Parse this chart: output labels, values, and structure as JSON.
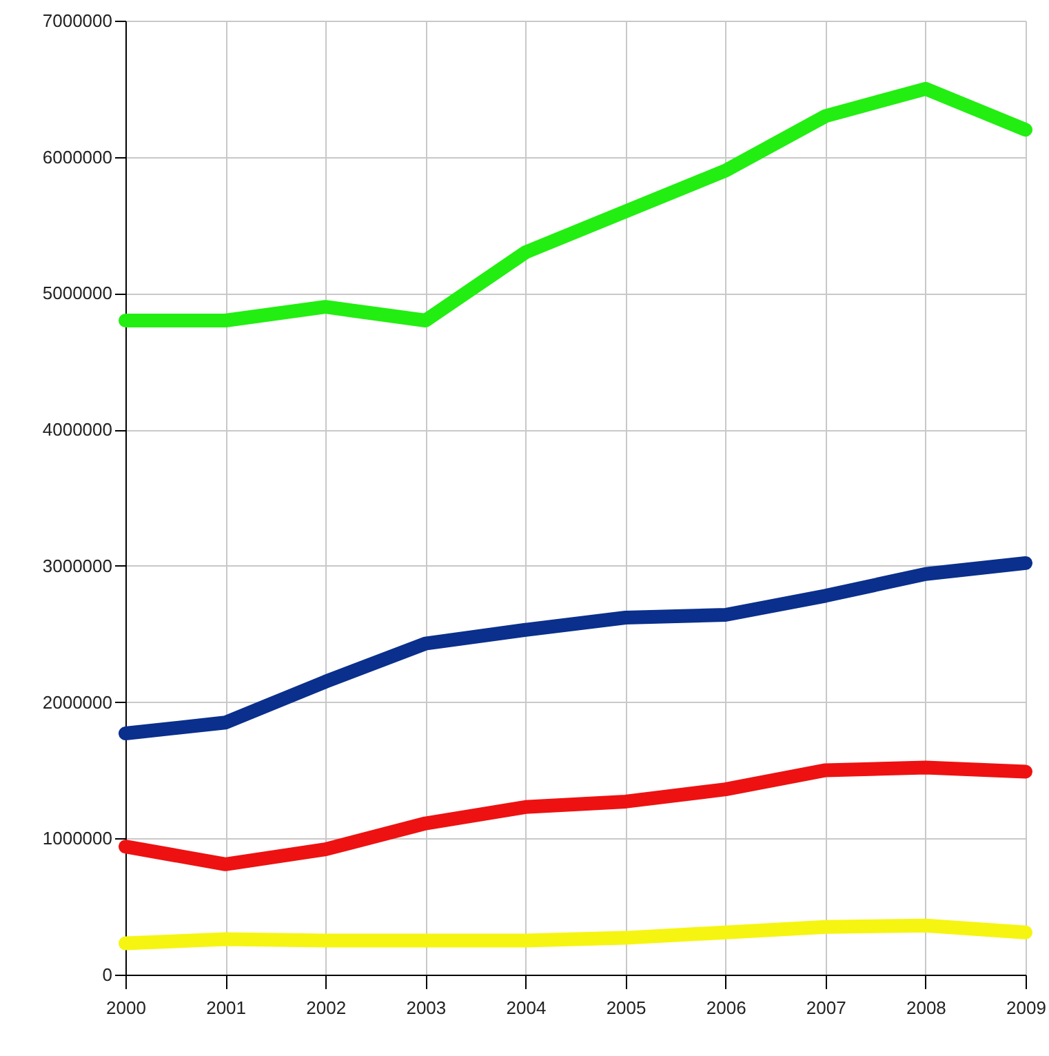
{
  "chart_data": {
    "type": "line",
    "x": [
      2000,
      2001,
      2002,
      2003,
      2004,
      2005,
      2006,
      2007,
      2008,
      2009
    ],
    "series": [
      {
        "color": "#22ee11",
        "values": [
          4800000,
          4800000,
          4900000,
          4800000,
          5300000,
          5600000,
          5900000,
          6300000,
          6500000,
          6200000
        ]
      },
      {
        "color": "#0a2f8c",
        "values": [
          1770000,
          1850000,
          2150000,
          2430000,
          2530000,
          2620000,
          2640000,
          2780000,
          2940000,
          3020000
        ]
      },
      {
        "color": "#ee1111",
        "values": [
          940000,
          810000,
          920000,
          1110000,
          1230000,
          1270000,
          1360000,
          1500000,
          1520000,
          1490000
        ]
      },
      {
        "color": "#f5f511",
        "values": [
          230000,
          260000,
          250000,
          250000,
          250000,
          270000,
          310000,
          350000,
          360000,
          310000
        ]
      }
    ],
    "xlim": [
      2000,
      2009
    ],
    "xticks": [
      2000,
      2001,
      2002,
      2003,
      2004,
      2005,
      2006,
      2007,
      2008,
      2009
    ],
    "ylim": [
      0,
      7000000
    ],
    "yticks": [
      0,
      1000000,
      2000000,
      3000000,
      4000000,
      5000000,
      6000000,
      7000000
    ],
    "grid": true,
    "line_style": "solid"
  }
}
